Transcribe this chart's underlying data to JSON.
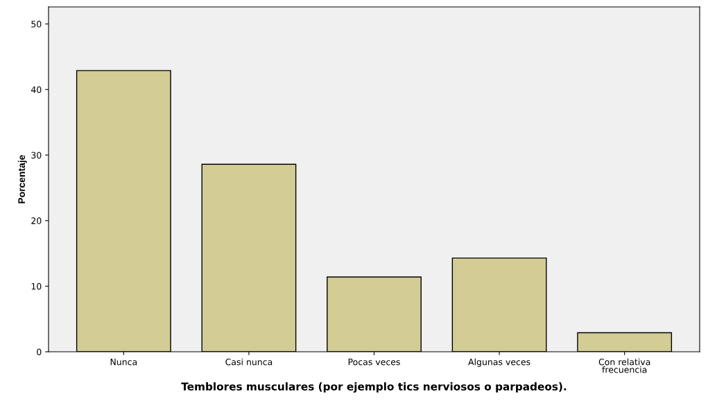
{
  "chart_data": {
    "type": "bar",
    "xlabel": "Temblores musculares (por ejemplo tics nerviosos o parpadeos).",
    "ylabel": "Porcentaje",
    "categories": [
      "Nunca",
      "Casi nunca",
      "Pocas veces",
      "Algunas veces",
      "Con relativa\nfrecuencia"
    ],
    "values": [
      42.9,
      28.6,
      11.4,
      14.3,
      2.9
    ],
    "color": "#d3cd95",
    "ylim": [
      0,
      52.6
    ],
    "yticks": [
      0,
      10,
      20,
      30,
      40,
      50
    ],
    "grid": false
  }
}
